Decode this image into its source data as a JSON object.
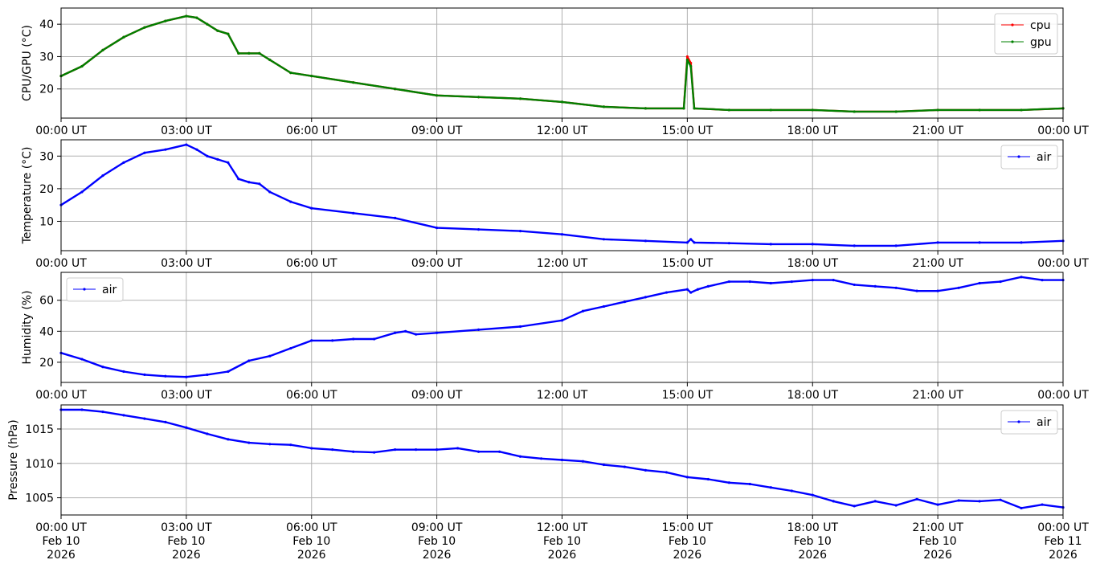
{
  "x_tick_labels": [
    "00:00 UT",
    "03:00 UT",
    "06:00 UT",
    "09:00 UT",
    "12:00 UT",
    "15:00 UT",
    "18:00 UT",
    "21:00 UT",
    "00:00 UT"
  ],
  "bottom_x_tick_labels": [
    [
      "00:00 UT",
      "Feb 10",
      "2026"
    ],
    [
      "03:00 UT",
      "Feb 10",
      "2026"
    ],
    [
      "06:00 UT",
      "Feb 10",
      "2026"
    ],
    [
      "09:00 UT",
      "Feb 10",
      "2026"
    ],
    [
      "12:00 UT",
      "Feb 10",
      "2026"
    ],
    [
      "15:00 UT",
      "Feb 10",
      "2026"
    ],
    [
      "18:00 UT",
      "Feb 10",
      "2026"
    ],
    [
      "21:00 UT",
      "Feb 10",
      "2026"
    ],
    [
      "00:00 UT",
      "Feb 11",
      "2026"
    ]
  ],
  "chart_data": [
    {
      "type": "line",
      "ylabel": "CPU/GPU (°C)",
      "xlim": [
        "2026-02-10 00:00",
        "2026-02-11 00:00"
      ],
      "ylim": [
        11,
        45
      ],
      "yticks": [
        20,
        30,
        40
      ],
      "grid": true,
      "legend": "top-right",
      "series": [
        {
          "name": "cpu",
          "color": "#ff0000",
          "x": [
            "00:00",
            "00:30",
            "01:00",
            "01:30",
            "02:00",
            "02:30",
            "03:00",
            "03:15",
            "03:30",
            "03:45",
            "04:00",
            "04:15",
            "04:30",
            "04:45",
            "05:00",
            "05:30",
            "06:00",
            "07:00",
            "08:00",
            "09:00",
            "10:00",
            "11:00",
            "12:00",
            "13:00",
            "14:00",
            "14:55",
            "15:00",
            "15:05",
            "15:10",
            "16:00",
            "17:00",
            "18:00",
            "19:00",
            "20:00",
            "21:00",
            "22:00",
            "23:00",
            "24:00"
          ],
          "values": [
            24,
            27,
            32,
            36,
            39,
            41,
            42.5,
            42,
            40,
            38,
            37,
            31,
            31,
            31,
            29,
            25,
            24,
            22,
            20,
            18,
            17.5,
            17,
            16,
            14.5,
            14,
            14,
            30,
            28,
            14,
            13.5,
            13.5,
            13.5,
            13,
            13,
            13.5,
            13.5,
            13.5,
            14
          ]
        },
        {
          "name": "gpu",
          "color": "#008000",
          "x": [
            "00:00",
            "00:30",
            "01:00",
            "01:30",
            "02:00",
            "02:30",
            "03:00",
            "03:15",
            "03:30",
            "03:45",
            "04:00",
            "04:15",
            "04:30",
            "04:45",
            "05:00",
            "05:30",
            "06:00",
            "07:00",
            "08:00",
            "09:00",
            "10:00",
            "11:00",
            "12:00",
            "13:00",
            "14:00",
            "14:55",
            "15:00",
            "15:05",
            "15:10",
            "16:00",
            "17:00",
            "18:00",
            "19:00",
            "20:00",
            "21:00",
            "22:00",
            "23:00",
            "24:00"
          ],
          "values": [
            24,
            27,
            32,
            36,
            39,
            41,
            42.5,
            42,
            40,
            38,
            37,
            31,
            31,
            31,
            29,
            25,
            24,
            22,
            20,
            18,
            17.5,
            17,
            16,
            14.5,
            14,
            14,
            29,
            27,
            14,
            13.5,
            13.5,
            13.5,
            13,
            13,
            13.5,
            13.5,
            13.5,
            14
          ]
        }
      ]
    },
    {
      "type": "line",
      "ylabel": "Temperature (°C)",
      "xlim": [
        "2026-02-10 00:00",
        "2026-02-11 00:00"
      ],
      "ylim": [
        1,
        35
      ],
      "yticks": [
        10,
        20,
        30
      ],
      "grid": true,
      "legend": "top-right",
      "series": [
        {
          "name": "air",
          "color": "#0000ff",
          "x": [
            "00:00",
            "00:30",
            "01:00",
            "01:30",
            "02:00",
            "02:30",
            "03:00",
            "03:15",
            "03:30",
            "03:45",
            "04:00",
            "04:15",
            "04:30",
            "04:45",
            "05:00",
            "05:30",
            "06:00",
            "07:00",
            "08:00",
            "09:00",
            "10:00",
            "11:00",
            "12:00",
            "13:00",
            "14:00",
            "15:00",
            "15:05",
            "15:10",
            "16:00",
            "17:00",
            "18:00",
            "19:00",
            "20:00",
            "21:00",
            "22:00",
            "23:00",
            "24:00"
          ],
          "values": [
            15,
            19,
            24,
            28,
            31,
            32,
            33.5,
            32,
            30,
            29,
            28,
            23,
            22,
            21.5,
            19,
            16,
            14,
            12.5,
            11,
            8,
            7.5,
            7,
            6,
            4.5,
            4,
            3.5,
            4.5,
            3.5,
            3.3,
            3,
            3,
            2.5,
            2.5,
            3.5,
            3.5,
            3.5,
            4
          ]
        }
      ]
    },
    {
      "type": "line",
      "ylabel": "Humidity (%)",
      "xlim": [
        "2026-02-10 00:00",
        "2026-02-11 00:00"
      ],
      "ylim": [
        7,
        78
      ],
      "yticks": [
        20,
        40,
        60
      ],
      "grid": true,
      "legend": "top-left",
      "series": [
        {
          "name": "air",
          "color": "#0000ff",
          "x": [
            "00:00",
            "00:30",
            "01:00",
            "01:30",
            "02:00",
            "02:30",
            "03:00",
            "03:30",
            "04:00",
            "04:30",
            "05:00",
            "05:30",
            "06:00",
            "06:30",
            "07:00",
            "07:30",
            "08:00",
            "08:15",
            "08:30",
            "09:00",
            "10:00",
            "11:00",
            "12:00",
            "12:30",
            "13:00",
            "13:30",
            "14:00",
            "14:30",
            "15:00",
            "15:05",
            "15:15",
            "15:30",
            "16:00",
            "16:30",
            "17:00",
            "17:30",
            "18:00",
            "18:30",
            "19:00",
            "19:30",
            "20:00",
            "20:30",
            "21:00",
            "21:30",
            "22:00",
            "22:30",
            "23:00",
            "23:30",
            "24:00"
          ],
          "values": [
            26,
            22,
            17,
            14,
            12,
            11,
            10.5,
            12,
            14,
            21,
            24,
            29,
            34,
            34,
            35,
            35,
            39,
            40,
            38,
            39,
            41,
            43,
            47,
            53,
            56,
            59,
            62,
            65,
            67,
            65,
            67,
            69,
            72,
            72,
            71,
            72,
            73,
            73,
            70,
            69,
            68,
            66,
            66,
            68,
            71,
            72,
            75,
            73,
            73
          ]
        }
      ]
    },
    {
      "type": "line",
      "ylabel": "Pressure (hPa)",
      "xlim": [
        "2026-02-10 00:00",
        "2026-02-11 00:00"
      ],
      "ylim": [
        1002.5,
        1018.5
      ],
      "yticks": [
        1005,
        1010,
        1015
      ],
      "grid": true,
      "legend": "top-right",
      "series": [
        {
          "name": "air",
          "color": "#0000ff",
          "x": [
            "00:00",
            "00:30",
            "01:00",
            "01:30",
            "02:00",
            "02:30",
            "03:00",
            "03:30",
            "04:00",
            "04:30",
            "05:00",
            "05:30",
            "06:00",
            "06:30",
            "07:00",
            "07:30",
            "08:00",
            "08:30",
            "09:00",
            "09:30",
            "10:00",
            "10:30",
            "11:00",
            "11:30",
            "12:00",
            "12:30",
            "13:00",
            "13:30",
            "14:00",
            "14:30",
            "15:00",
            "15:30",
            "16:00",
            "16:30",
            "17:00",
            "17:30",
            "18:00",
            "18:30",
            "19:00",
            "19:30",
            "20:00",
            "20:30",
            "21:00",
            "21:30",
            "22:00",
            "22:30",
            "23:00",
            "23:30",
            "24:00"
          ],
          "values": [
            1017.8,
            1017.8,
            1017.5,
            1017,
            1016.5,
            1016,
            1015.2,
            1014.3,
            1013.5,
            1013,
            1012.8,
            1012.7,
            1012.2,
            1012,
            1011.7,
            1011.6,
            1012,
            1012,
            1012,
            1012.2,
            1011.7,
            1011.7,
            1011,
            1010.7,
            1010.5,
            1010.3,
            1009.8,
            1009.5,
            1009,
            1008.7,
            1008,
            1007.7,
            1007.2,
            1007,
            1006.5,
            1006,
            1005.4,
            1004.5,
            1003.8,
            1004.5,
            1003.9,
            1004.8,
            1004,
            1004.6,
            1004.5,
            1004.7,
            1003.5,
            1004,
            1003.6
          ]
        }
      ]
    }
  ]
}
